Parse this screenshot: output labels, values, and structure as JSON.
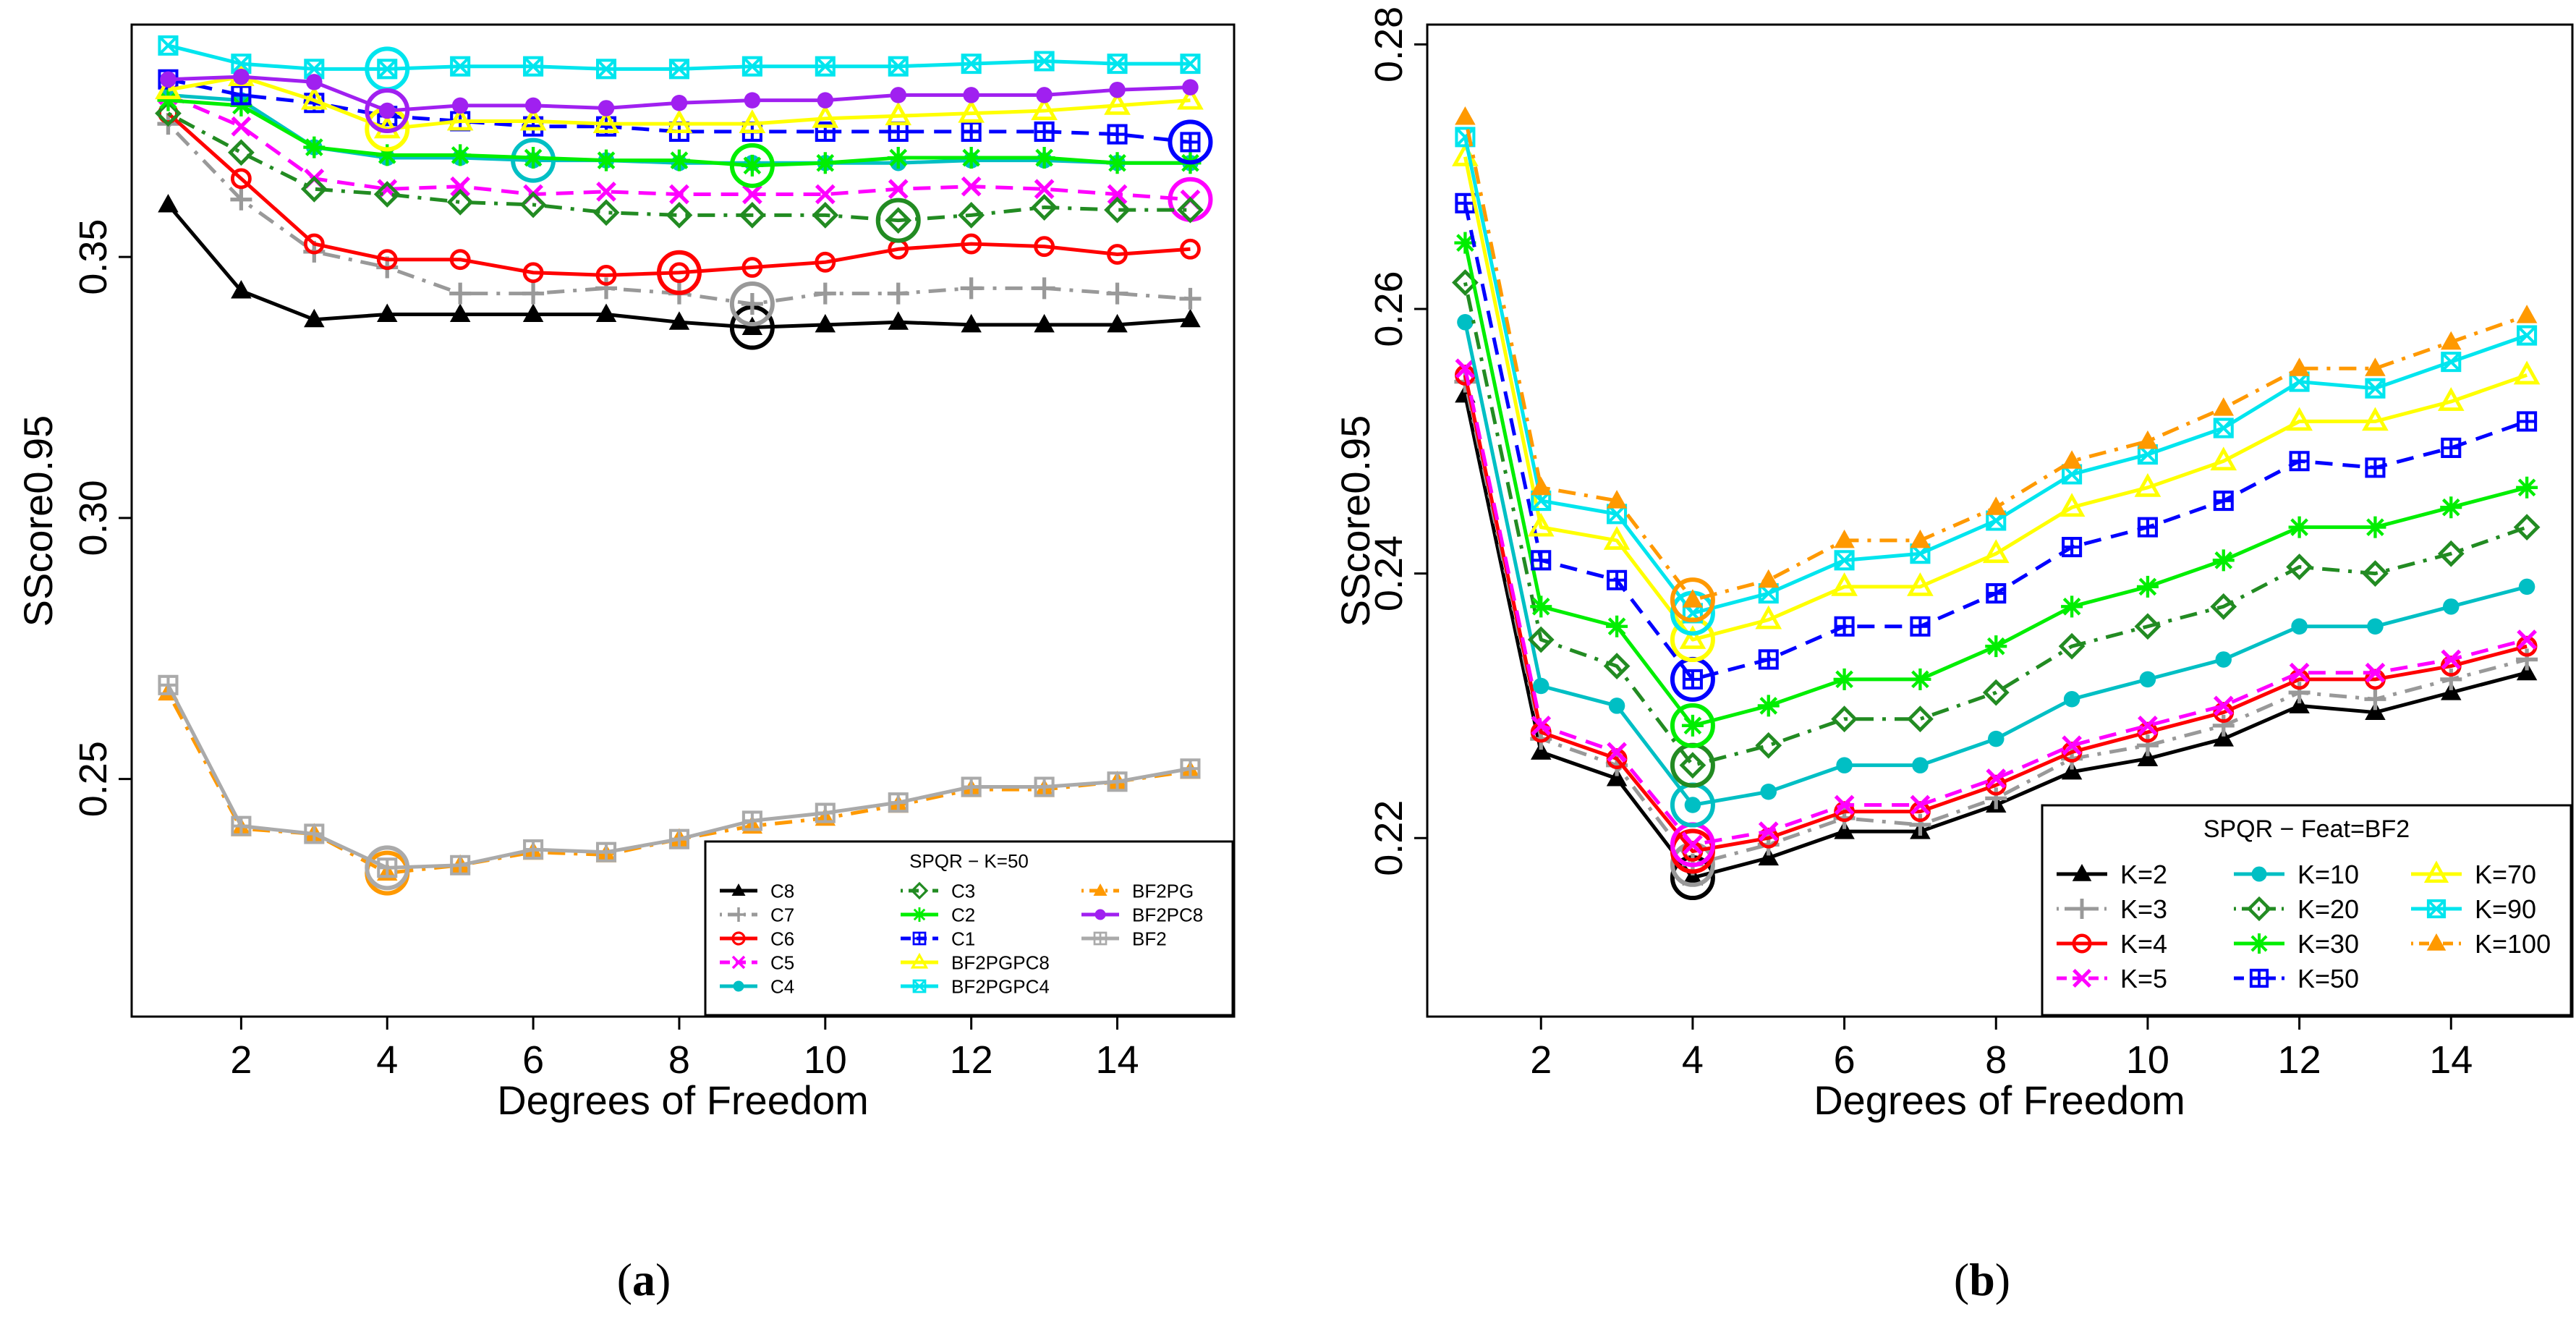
{
  "chart_data": [
    {
      "type": "line",
      "panel_caption": "(a)",
      "xlabel": "Degrees of Freedom",
      "ylabel": "SScore0.95",
      "xlim": [
        0.5,
        15.6
      ],
      "ylim": [
        0.2045,
        0.3945
      ],
      "xticks": [
        2,
        4,
        6,
        8,
        10,
        12,
        14
      ],
      "xtick_labels": [
        "2",
        "4",
        "6",
        "8",
        "10",
        "12",
        "14"
      ],
      "yticks": [
        0.25,
        0.3,
        0.35
      ],
      "ytick_labels": [
        "0.25",
        "0.30",
        "0.35"
      ],
      "legend_title": "SPQR − K=50",
      "legend_position": "bottom-right",
      "x": [
        1,
        2,
        3,
        4,
        5,
        6,
        7,
        8,
        9,
        10,
        11,
        12,
        13,
        14,
        15
      ],
      "series": [
        {
          "name": "C8",
          "color": "#000000",
          "dash": "solid",
          "marker": "triangle",
          "values": [
            0.36,
            0.3435,
            0.338,
            0.339,
            0.339,
            0.339,
            0.339,
            0.3375,
            0.3365,
            0.337,
            0.3375,
            0.337,
            0.337,
            0.337,
            0.338
          ],
          "circle_index": 8
        },
        {
          "name": "C7",
          "color": "#999999",
          "dash": "dotdash",
          "marker": "plus",
          "values": [
            0.3755,
            0.361,
            0.351,
            0.348,
            0.343,
            0.343,
            0.344,
            0.343,
            0.341,
            0.343,
            0.343,
            0.344,
            0.344,
            0.343,
            0.342
          ],
          "circle_index": 8
        },
        {
          "name": "C6",
          "color": "#ff0000",
          "dash": "solid",
          "marker": "circle",
          "values": [
            0.3775,
            0.365,
            0.3525,
            0.3495,
            0.3495,
            0.347,
            0.3465,
            0.347,
            0.348,
            0.349,
            0.3515,
            0.3525,
            0.352,
            0.3505,
            0.3515
          ],
          "circle_index": 7
        },
        {
          "name": "C5",
          "color": "#ff00ff",
          "dash": "dashed",
          "marker": "x",
          "values": [
            0.381,
            0.375,
            0.365,
            0.363,
            0.3635,
            0.362,
            0.3625,
            0.362,
            0.362,
            0.362,
            0.363,
            0.3635,
            0.363,
            0.362,
            0.361
          ],
          "circle_index": 14
        },
        {
          "name": "C4",
          "color": "#00bfc4",
          "dash": "solid",
          "marker": "dot",
          "values": [
            0.381,
            0.38,
            0.371,
            0.369,
            0.369,
            0.3685,
            0.3685,
            0.368,
            0.368,
            0.368,
            0.368,
            0.3685,
            0.3685,
            0.368,
            0.368
          ],
          "circle_index": 5
        },
        {
          "name": "C3",
          "color": "#228b22",
          "dash": "dotdash",
          "marker": "diamond",
          "values": [
            0.3775,
            0.37,
            0.363,
            0.362,
            0.3605,
            0.36,
            0.3585,
            0.358,
            0.358,
            0.358,
            0.357,
            0.358,
            0.3595,
            0.359,
            0.359
          ],
          "circle_index": 10
        },
        {
          "name": "C2",
          "color": "#00ee00",
          "dash": "solid",
          "marker": "star",
          "values": [
            0.38,
            0.379,
            0.371,
            0.3695,
            0.3695,
            0.369,
            0.3685,
            0.3685,
            0.3675,
            0.368,
            0.369,
            0.369,
            0.369,
            0.368,
            0.368
          ],
          "circle_index": 8
        },
        {
          "name": "C1",
          "color": "#0000ff",
          "dash": "dashed",
          "marker": "boxplus",
          "values": [
            0.384,
            0.381,
            0.3795,
            0.377,
            0.376,
            0.375,
            0.375,
            0.374,
            0.374,
            0.374,
            0.374,
            0.374,
            0.374,
            0.3735,
            0.372
          ],
          "circle_index": 14
        },
        {
          "name": "BF2PGPC8",
          "color": "#ffff00",
          "dash": "solid",
          "marker": "triangle-open",
          "values": [
            0.382,
            0.3845,
            0.38,
            0.3745,
            0.376,
            0.376,
            0.3755,
            0.3755,
            0.3755,
            0.3765,
            0.377,
            0.3775,
            0.378,
            0.379,
            0.38
          ],
          "circle_index": 3
        },
        {
          "name": "BF2PGPC4",
          "color": "#00e5ee",
          "dash": "solid",
          "marker": "boxx",
          "values": [
            0.3905,
            0.387,
            0.386,
            0.386,
            0.3865,
            0.3865,
            0.386,
            0.386,
            0.3865,
            0.3865,
            0.3865,
            0.387,
            0.3875,
            0.387,
            0.387
          ],
          "circle_index": 3
        },
        {
          "name": "BF2PG",
          "color": "#ff9900",
          "dash": "dotdash",
          "marker": "triangle",
          "values": [
            0.2665,
            0.2405,
            0.2395,
            0.232,
            0.2335,
            0.236,
            0.2355,
            0.2385,
            0.241,
            0.2425,
            0.245,
            0.248,
            0.248,
            0.2495,
            0.2515
          ],
          "circle_index": 3
        },
        {
          "name": "BF2PC8",
          "color": "#a020f0",
          "dash": "solid",
          "marker": "dot",
          "values": [
            0.384,
            0.3845,
            0.3835,
            0.378,
            0.379,
            0.379,
            0.3785,
            0.3795,
            0.38,
            0.38,
            0.381,
            0.381,
            0.381,
            0.382,
            0.3825
          ],
          "circle_index": 3
        },
        {
          "name": "BF2",
          "color": "#aaaaaa",
          "dash": "solid",
          "marker": "boxplus",
          "values": [
            0.268,
            0.241,
            0.2395,
            0.233,
            0.2335,
            0.2365,
            0.236,
            0.2385,
            0.242,
            0.2435,
            0.2455,
            0.2485,
            0.2485,
            0.2495,
            0.252
          ],
          "circle_index": 3
        }
      ]
    },
    {
      "type": "line",
      "panel_caption": "(b)",
      "xlabel": "Degrees of Freedom",
      "ylabel": "SScore0.95",
      "xlim": [
        0.5,
        15.6
      ],
      "ylim": [
        0.2065,
        0.2815
      ],
      "xticks": [
        2,
        4,
        6,
        8,
        10,
        12,
        14
      ],
      "xtick_labels": [
        "2",
        "4",
        "6",
        "8",
        "10",
        "12",
        "14"
      ],
      "yticks": [
        0.22,
        0.24,
        0.26,
        0.28
      ],
      "ytick_labels": [
        "0.22",
        "0.24",
        "0.26",
        "0.28"
      ],
      "legend_title": "SPQR − Feat=BF2",
      "legend_position": "bottom-right",
      "x": [
        1,
        2,
        3,
        4,
        5,
        6,
        7,
        8,
        9,
        10,
        11,
        12,
        13,
        14,
        15
      ],
      "series": [
        {
          "name": "K=2",
          "color": "#000000",
          "dash": "solid",
          "marker": "triangle",
          "values": [
            0.2535,
            0.2265,
            0.2245,
            0.217,
            0.2185,
            0.2205,
            0.2205,
            0.2225,
            0.225,
            0.226,
            0.2275,
            0.23,
            0.2295,
            0.231,
            0.2325
          ],
          "circle_index": 3
        },
        {
          "name": "K=3",
          "color": "#999999",
          "dash": "dotdash",
          "marker": "plus",
          "values": [
            0.2545,
            0.2275,
            0.2255,
            0.218,
            0.2195,
            0.2215,
            0.221,
            0.223,
            0.226,
            0.227,
            0.2285,
            0.231,
            0.2305,
            0.232,
            0.2335
          ],
          "circle_index": 3
        },
        {
          "name": "K=4",
          "color": "#ff0000",
          "dash": "solid",
          "marker": "circle",
          "values": [
            0.255,
            0.228,
            0.226,
            0.219,
            0.22,
            0.222,
            0.222,
            0.224,
            0.2265,
            0.228,
            0.2295,
            0.232,
            0.232,
            0.233,
            0.2345
          ],
          "circle_index": 3
        },
        {
          "name": "K=5",
          "color": "#ff00ff",
          "dash": "dashed",
          "marker": "x",
          "values": [
            0.2555,
            0.2285,
            0.2265,
            0.2195,
            0.2205,
            0.2225,
            0.2225,
            0.2245,
            0.227,
            0.2285,
            0.23,
            0.2325,
            0.2325,
            0.2335,
            0.235
          ],
          "circle_index": 3
        },
        {
          "name": "K=10",
          "color": "#00bfc4",
          "dash": "solid",
          "marker": "dot",
          "values": [
            0.259,
            0.2315,
            0.23,
            0.2225,
            0.2235,
            0.2255,
            0.2255,
            0.2275,
            0.2305,
            0.232,
            0.2335,
            0.236,
            0.236,
            0.2375,
            0.239
          ],
          "circle_index": 3
        },
        {
          "name": "K=20",
          "color": "#228b22",
          "dash": "dotdash",
          "marker": "diamond",
          "values": [
            0.262,
            0.235,
            0.233,
            0.2255,
            0.227,
            0.229,
            0.229,
            0.231,
            0.2345,
            0.236,
            0.2375,
            0.2405,
            0.24,
            0.2415,
            0.2435
          ],
          "circle_index": 3
        },
        {
          "name": "K=30",
          "color": "#00ee00",
          "dash": "solid",
          "marker": "star",
          "values": [
            0.265,
            0.2375,
            0.236,
            0.2285,
            0.23,
            0.232,
            0.232,
            0.2345,
            0.2375,
            0.239,
            0.241,
            0.2435,
            0.2435,
            0.245,
            0.2465
          ],
          "circle_index": 3
        },
        {
          "name": "K=50",
          "color": "#0000ff",
          "dash": "dashed",
          "marker": "boxplus",
          "values": [
            0.268,
            0.241,
            0.2395,
            0.232,
            0.2335,
            0.236,
            0.236,
            0.2385,
            0.242,
            0.2435,
            0.2455,
            0.2485,
            0.248,
            0.2495,
            0.2515
          ],
          "circle_index": 3
        },
        {
          "name": "K=70",
          "color": "#ffff00",
          "dash": "solid",
          "marker": "triangle-open",
          "values": [
            0.2715,
            0.2435,
            0.2425,
            0.235,
            0.2365,
            0.239,
            0.239,
            0.2415,
            0.245,
            0.2465,
            0.2485,
            0.2515,
            0.2515,
            0.253,
            0.255
          ],
          "circle_index": 3
        },
        {
          "name": "K=90",
          "color": "#00e5ee",
          "dash": "solid",
          "marker": "boxx",
          "values": [
            0.273,
            0.2455,
            0.2445,
            0.237,
            0.2385,
            0.241,
            0.2415,
            0.244,
            0.2475,
            0.249,
            0.251,
            0.2545,
            0.254,
            0.256,
            0.258
          ],
          "circle_index": 3
        },
        {
          "name": "K=100",
          "color": "#ff9900",
          "dash": "dotdash",
          "marker": "triangle",
          "values": [
            0.2745,
            0.2465,
            0.2455,
            0.238,
            0.2395,
            0.2425,
            0.2425,
            0.245,
            0.2485,
            0.25,
            0.2525,
            0.2555,
            0.2555,
            0.2575,
            0.2595
          ],
          "circle_index": 3
        }
      ]
    }
  ]
}
